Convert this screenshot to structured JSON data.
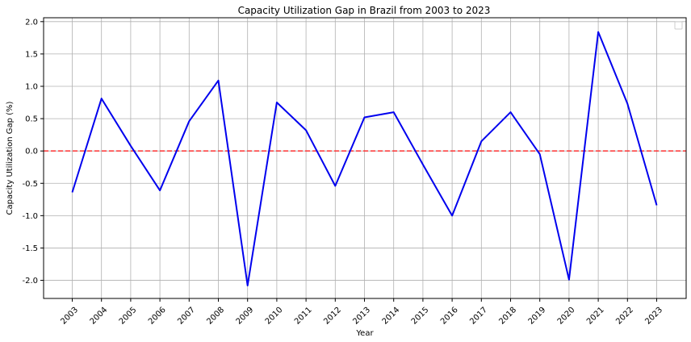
{
  "chart_data": {
    "type": "line",
    "title": "Capacity Utilization Gap in Brazil from 2003 to 2023",
    "xlabel": "Year",
    "ylabel": "Capacity Utilization Gap (%)",
    "x": [
      "2003",
      "2004",
      "2005",
      "2006",
      "2007",
      "2008",
      "2009",
      "2010",
      "2011",
      "2012",
      "2013",
      "2014",
      "2015",
      "2016",
      "2017",
      "2018",
      "2019",
      "2020",
      "2021",
      "2022",
      "2023"
    ],
    "series": [
      {
        "color": "#0000ee",
        "values": [
          -0.64,
          0.81,
          0.08,
          -0.61,
          0.46,
          1.09,
          -2.08,
          0.75,
          0.32,
          -0.54,
          0.52,
          0.6,
          -0.21,
          -1.0,
          0.15,
          0.6,
          -0.05,
          -1.99,
          1.84,
          0.73,
          -0.84
        ]
      }
    ],
    "ylim": [
      -2.28,
      2.06
    ],
    "yticks": [
      "-2.0",
      "-1.5",
      "-1.0",
      "-0.5",
      "0.0",
      "0.5",
      "1.0",
      "1.5",
      "2.0"
    ],
    "reference_line": {
      "y": 0.0,
      "color": "#ff3333",
      "style": "dashed"
    },
    "grid": true,
    "legend": "top-right"
  }
}
